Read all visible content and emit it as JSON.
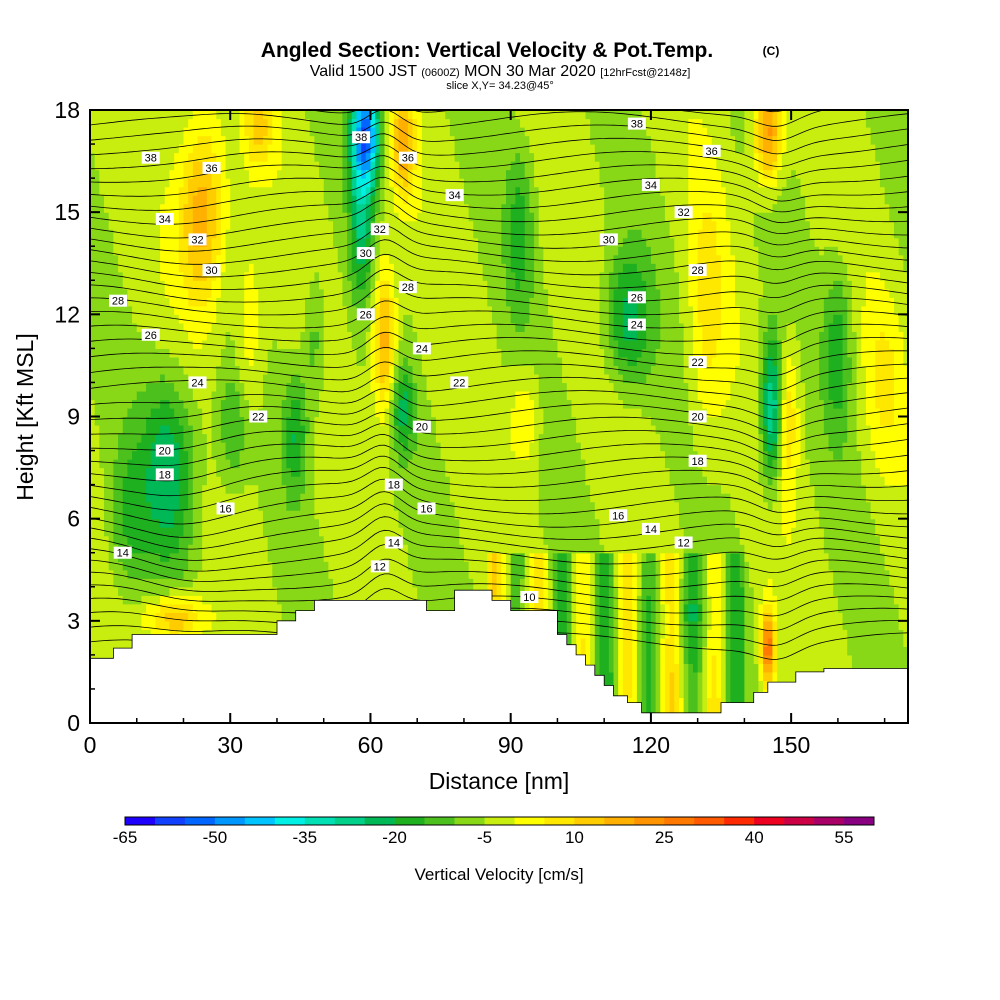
{
  "header": {
    "title": "Angled Section: Vertical Velocity & Pot.Temp.",
    "copyright": "(C)",
    "valid_pre": "Valid 1500 JST",
    "valid_utc": "(0600Z)",
    "valid_post": "MON 30 Mar 2020",
    "forecast": "[12hrFcst@2148z]",
    "slice": "slice X,Y= 34.23@45°"
  },
  "chart_data": {
    "type": "heatmap",
    "xlabel": "Distance [nm]",
    "ylabel": "Height [Kft MSL]",
    "xlim": [
      0,
      175
    ],
    "ylim": [
      0,
      18
    ],
    "xticks": [
      0,
      30,
      60,
      90,
      120,
      150
    ],
    "yticks": [
      0,
      3,
      6,
      9,
      12,
      15,
      18
    ],
    "colorbar": {
      "label": "Vertical Velocity [cm/s]",
      "tick_labels": [
        "-65",
        "-50",
        "-35",
        "-20",
        "-5",
        "10",
        "25",
        "40",
        "55"
      ],
      "tick_values": [
        -65,
        -50,
        -35,
        -20,
        -5,
        10,
        25,
        40,
        55
      ],
      "bin_edges": [
        -65,
        -60,
        -55,
        -50,
        -45,
        -40,
        -35,
        -30,
        -25,
        -20,
        -15,
        -10,
        -5,
        0,
        5,
        10,
        15,
        20,
        25,
        30,
        35,
        40,
        45,
        50,
        55,
        60
      ],
      "colors": [
        "#1e00ff",
        "#1140ff",
        "#0066ff",
        "#0098ff",
        "#00c4ff",
        "#00f0e6",
        "#00e0b4",
        "#00d08a",
        "#00b856",
        "#1fb020",
        "#4cc01c",
        "#88d818",
        "#c8ee10",
        "#ffff00",
        "#ffe800",
        "#ffcc00",
        "#ffb000",
        "#ff9400",
        "#ff7800",
        "#ff5a00",
        "#ff2a00",
        "#ee0020",
        "#cc0044",
        "#a80066",
        "#880080"
      ]
    },
    "terrain": [
      [
        0,
        1.9
      ],
      [
        5,
        1.9
      ],
      [
        5,
        2.2
      ],
      [
        9,
        2.2
      ],
      [
        9,
        2.6
      ],
      [
        14,
        2.6
      ],
      [
        14,
        2.6
      ],
      [
        40,
        2.6
      ],
      [
        40,
        3.0
      ],
      [
        44,
        3.0
      ],
      [
        44,
        3.3
      ],
      [
        48,
        3.3
      ],
      [
        48,
        3.6
      ],
      [
        60,
        3.6
      ],
      [
        60,
        3.6
      ],
      [
        64,
        3.6
      ],
      [
        64,
        3.6
      ],
      [
        72,
        3.6
      ],
      [
        72,
        3.3
      ],
      [
        78,
        3.3
      ],
      [
        78,
        3.9
      ],
      [
        86,
        3.9
      ],
      [
        86,
        3.6
      ],
      [
        90,
        3.6
      ],
      [
        90,
        3.3
      ],
      [
        100,
        3.3
      ],
      [
        100,
        2.6
      ],
      [
        102,
        2.6
      ],
      [
        102,
        2.3
      ],
      [
        104,
        2.3
      ],
      [
        104,
        2.0
      ],
      [
        106,
        2.0
      ],
      [
        106,
        1.7
      ],
      [
        108,
        1.7
      ],
      [
        108,
        1.4
      ],
      [
        110,
        1.4
      ],
      [
        110,
        1.1
      ],
      [
        112,
        1.1
      ],
      [
        112,
        0.8
      ],
      [
        115,
        0.8
      ],
      [
        115,
        0.6
      ],
      [
        118,
        0.6
      ],
      [
        118,
        0.3
      ],
      [
        125,
        0.3
      ],
      [
        125,
        0.3
      ],
      [
        135,
        0.3
      ],
      [
        135,
        0.6
      ],
      [
        142,
        0.6
      ],
      [
        142,
        0.9
      ],
      [
        145,
        0.9
      ],
      [
        145,
        1.2
      ],
      [
        151,
        1.2
      ],
      [
        151,
        1.5
      ],
      [
        157,
        1.5
      ],
      [
        157,
        1.6
      ],
      [
        175,
        1.6
      ]
    ],
    "theta_contour_labels": [
      {
        "text": "38",
        "x": 13,
        "y": 16.6
      },
      {
        "text": "36",
        "x": 26,
        "y": 16.3
      },
      {
        "text": "34",
        "x": 16,
        "y": 14.8
      },
      {
        "text": "32",
        "x": 23,
        "y": 14.2
      },
      {
        "text": "30",
        "x": 26,
        "y": 13.3
      },
      {
        "text": "28",
        "x": 6,
        "y": 12.4
      },
      {
        "text": "26",
        "x": 13,
        "y": 11.4
      },
      {
        "text": "24",
        "x": 23,
        "y": 10.0
      },
      {
        "text": "22",
        "x": 36,
        "y": 9.0
      },
      {
        "text": "20",
        "x": 16,
        "y": 8.0
      },
      {
        "text": "18",
        "x": 16,
        "y": 7.3
      },
      {
        "text": "16",
        "x": 29,
        "y": 6.3
      },
      {
        "text": "14",
        "x": 7,
        "y": 5.0
      },
      {
        "text": "38",
        "x": 58,
        "y": 17.2
      },
      {
        "text": "36",
        "x": 68,
        "y": 16.6
      },
      {
        "text": "34",
        "x": 78,
        "y": 15.5
      },
      {
        "text": "32",
        "x": 62,
        "y": 14.5
      },
      {
        "text": "30",
        "x": 59,
        "y": 13.8
      },
      {
        "text": "28",
        "x": 68,
        "y": 12.8
      },
      {
        "text": "26",
        "x": 59,
        "y": 12.0
      },
      {
        "text": "24",
        "x": 71,
        "y": 11.0
      },
      {
        "text": "22",
        "x": 79,
        "y": 10.0
      },
      {
        "text": "20",
        "x": 71,
        "y": 8.7
      },
      {
        "text": "18",
        "x": 65,
        "y": 7.0
      },
      {
        "text": "16",
        "x": 72,
        "y": 6.3
      },
      {
        "text": "14",
        "x": 65,
        "y": 5.3
      },
      {
        "text": "12",
        "x": 62,
        "y": 4.6
      },
      {
        "text": "10",
        "x": 94,
        "y": 3.7
      },
      {
        "text": "38",
        "x": 117,
        "y": 17.6
      },
      {
        "text": "36",
        "x": 133,
        "y": 16.8
      },
      {
        "text": "34",
        "x": 120,
        "y": 15.8
      },
      {
        "text": "32",
        "x": 127,
        "y": 15.0
      },
      {
        "text": "30",
        "x": 111,
        "y": 14.2
      },
      {
        "text": "28",
        "x": 130,
        "y": 13.3
      },
      {
        "text": "26",
        "x": 117,
        "y": 12.5
      },
      {
        "text": "24",
        "x": 117,
        "y": 11.7
      },
      {
        "text": "22",
        "x": 130,
        "y": 10.6
      },
      {
        "text": "20",
        "x": 130,
        "y": 9.0
      },
      {
        "text": "18",
        "x": 130,
        "y": 7.7
      },
      {
        "text": "16",
        "x": 113,
        "y": 6.1
      },
      {
        "text": "14",
        "x": 120,
        "y": 5.7
      },
      {
        "text": "12",
        "x": 127,
        "y": 5.3
      }
    ]
  }
}
